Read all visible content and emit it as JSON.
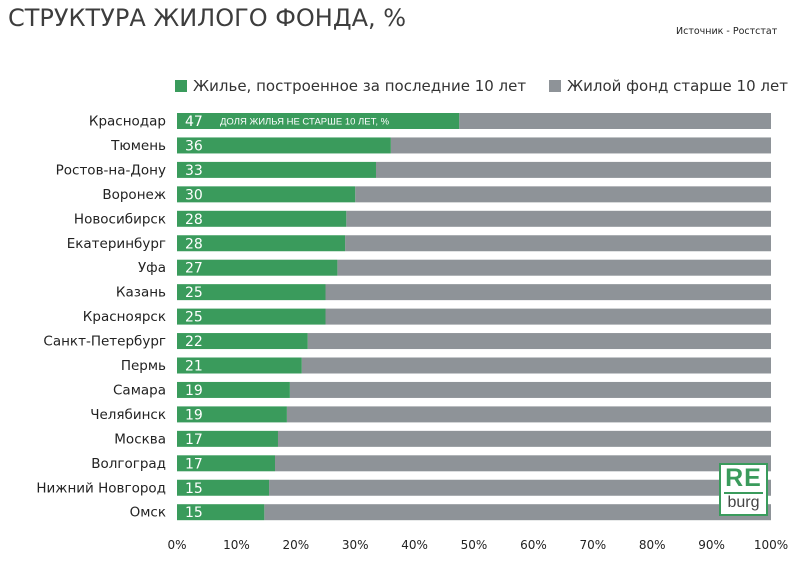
{
  "header": {
    "title": "СТРУКТУРА ЖИЛОГО ФОНДА, %",
    "source": "Источник - Ростстат"
  },
  "logo": {
    "top": "RE",
    "bottom": "burg"
  },
  "colors": {
    "new": "#3a9b5c",
    "old": "#8e9398"
  },
  "chart_data": {
    "type": "bar",
    "orientation": "horizontal",
    "stacked": true,
    "title": "СТРУКТУРА ЖИЛОГО ФОНДА, %",
    "categories": [
      "Краснодар",
      "Тюмень",
      "Ростов-на-Дону",
      "Воронеж",
      "Новосибирск",
      "Екатеринбург",
      "Уфа",
      "Казань",
      "Красноярск",
      "Санкт-Петербург",
      "Пермь",
      "Самара",
      "Челябинск",
      "Москва",
      "Волгоград",
      "Нижний Новгород",
      "Омск"
    ],
    "series": [
      {
        "name": "Жилье, построенное за последние 10 лет",
        "values": [
          47.5,
          36,
          33.5,
          30,
          28.5,
          28.3,
          27,
          25,
          25,
          22,
          21,
          19,
          18.5,
          17,
          16.5,
          15.5,
          14.7
        ],
        "labels": [
          "47",
          "36",
          "33",
          "30",
          "28",
          "28",
          "27",
          "25",
          "25",
          "22",
          "21",
          "19",
          "19",
          "17",
          "17",
          "15",
          "15"
        ]
      },
      {
        "name": "Жилой фонд старше 10 лет",
        "values": [
          52.5,
          64,
          66.5,
          70,
          71.5,
          71.7,
          73,
          75,
          75,
          78,
          79,
          81,
          81.5,
          83,
          83.5,
          84.5,
          85.3
        ]
      }
    ],
    "annotation": "ДОЛЯ ЖИЛЬЯ НЕ СТАРШЕ 10 ЛЕТ, %",
    "xticks": [
      "0%",
      "10%",
      "20%",
      "30%",
      "40%",
      "50%",
      "60%",
      "70%",
      "80%",
      "90%",
      "100%"
    ],
    "xlim": [
      0,
      100
    ],
    "grid": false,
    "legend": "top-right"
  }
}
